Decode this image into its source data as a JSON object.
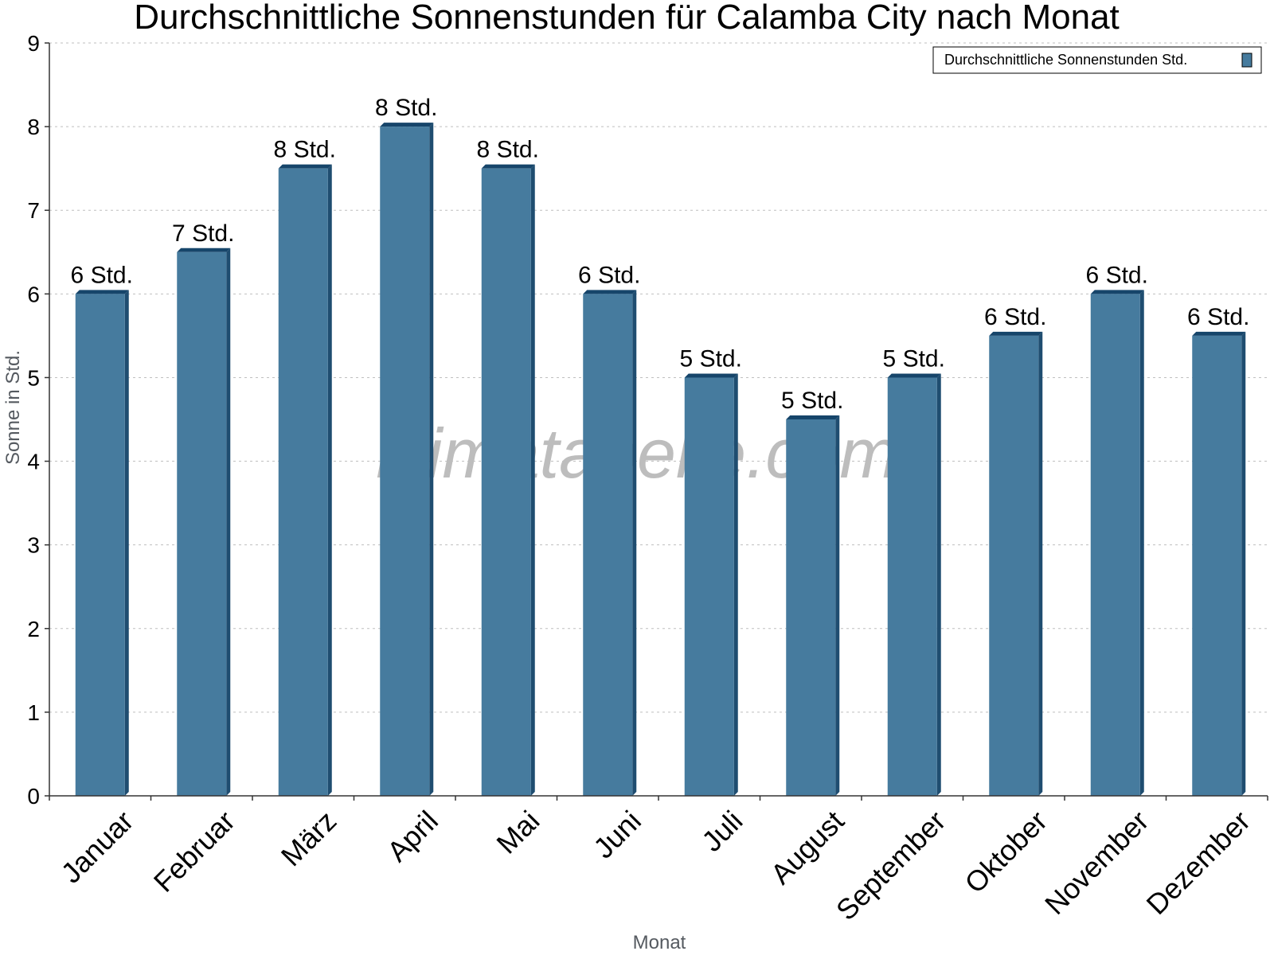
{
  "chart_data": {
    "type": "bar",
    "title": "Durchschnittliche Sonnenstunden für Calamba City nach Monat",
    "xlabel": "Monat",
    "ylabel": "Sonne in Std.",
    "ylim": [
      0,
      9
    ],
    "yticks": [
      0,
      1,
      2,
      3,
      4,
      5,
      6,
      7,
      8,
      9
    ],
    "grid": true,
    "legend_position": "top-right",
    "categories": [
      "Januar",
      "Februar",
      "März",
      "April",
      "Mai",
      "Juni",
      "Juli",
      "August",
      "September",
      "Oktober",
      "November",
      "Dezember"
    ],
    "series": [
      {
        "name": "Durchschnittliche Sonnenstunden Std.",
        "color": "#467b9e",
        "values": [
          6.0,
          6.5,
          7.5,
          8.0,
          7.5,
          6.0,
          5.0,
          4.5,
          5.0,
          5.5,
          6.0,
          5.5
        ],
        "labels": [
          "6 Std.",
          "7 Std.",
          "8 Std.",
          "8 Std.",
          "8 Std.",
          "6 Std.",
          "5 Std.",
          "5 Std.",
          "5 Std.",
          "6 Std.",
          "6 Std.",
          "6 Std."
        ]
      }
    ],
    "watermark": "klimatabelle.com"
  }
}
